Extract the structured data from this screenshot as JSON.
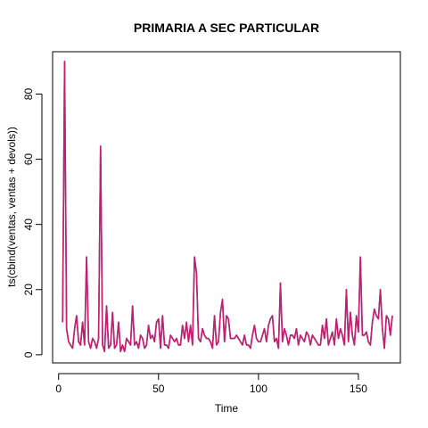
{
  "chart_data": {
    "type": "line",
    "title": "PRIMARIA A SEC PARTICULAR",
    "xlabel": "Time",
    "ylabel": "ts(cbind(ventas, ventas + devols))",
    "xlim": [
      -3,
      171
    ],
    "ylim": [
      -2.5,
      93
    ],
    "x_ticks": [
      0,
      50,
      100,
      150
    ],
    "y_ticks": [
      0,
      20,
      40,
      60,
      80
    ],
    "grid": false,
    "legend": "none",
    "colors": {
      "ventas": "#5a6ba0",
      "ventas_plus_devols": "#c41e6e"
    },
    "x_start": 2,
    "series": [
      {
        "values": [
          10,
          90,
          8,
          4,
          3,
          2,
          8,
          12,
          4,
          3,
          10,
          3,
          30,
          4,
          2,
          5,
          4,
          2,
          5,
          64,
          3,
          1,
          15,
          2,
          3,
          13,
          2,
          3,
          10,
          1,
          3,
          1,
          5,
          4,
          3,
          15,
          3,
          4,
          2,
          6,
          5,
          2,
          3,
          9,
          5,
          6,
          4,
          10,
          11,
          2,
          12,
          3,
          3,
          2,
          6,
          5,
          4,
          5,
          3,
          3,
          9,
          5,
          10,
          4,
          9,
          3,
          30,
          25,
          5,
          4,
          8,
          6,
          5,
          5,
          4,
          2,
          12,
          3,
          4,
          13,
          17,
          4,
          12,
          11,
          5,
          5,
          5,
          6,
          5,
          4,
          3,
          6,
          3,
          3,
          2,
          6,
          9,
          5,
          4,
          4,
          6,
          8,
          4,
          9,
          11,
          12,
          4,
          5,
          2,
          22,
          4,
          8,
          6,
          3,
          6,
          6,
          5,
          8,
          3,
          6,
          5,
          4,
          7,
          6,
          3,
          6,
          5,
          4,
          3,
          3,
          9,
          5,
          11,
          3,
          5,
          7,
          3,
          11,
          5,
          8,
          6,
          3,
          20,
          4,
          13,
          6,
          3,
          12,
          7,
          30,
          6,
          6,
          7,
          4,
          3,
          10,
          14,
          12,
          11,
          20,
          8,
          2,
          12,
          11,
          6,
          12
        ]
      }
    ]
  }
}
